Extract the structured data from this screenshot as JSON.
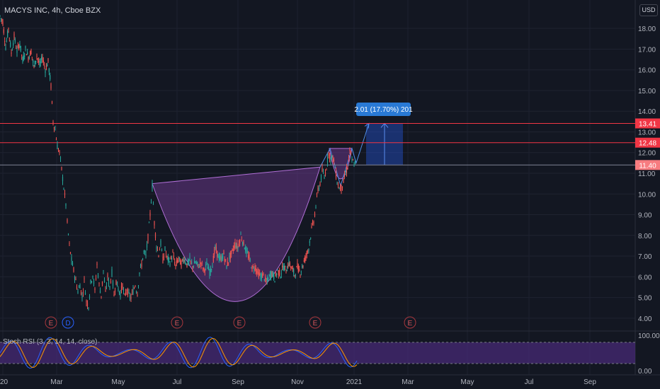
{
  "header": {
    "symbol_line": "MACYS INC, 4h, Cboe BZX",
    "currency": "USD"
  },
  "chart_data": {
    "type": "candlestick",
    "symbol": "MACYS INC",
    "interval": "4h",
    "exchange": "Cboe BZX",
    "ylim": [
      3.55,
      19.1
    ],
    "y_ticks": [
      "4.00",
      "5.00",
      "6.00",
      "7.00",
      "8.00",
      "9.00",
      "10.00",
      "11.00",
      "12.00",
      "13.00",
      "14.00",
      "15.00",
      "16.00",
      "17.00",
      "18.00"
    ],
    "x_ticks": [
      "20",
      "Mar",
      "May",
      "Jul",
      "Sep",
      "Nov",
      "2021",
      "Mar",
      "May",
      "Jul",
      "Sep"
    ],
    "price_path": [
      [
        0,
        18.6
      ],
      [
        4,
        18.3
      ],
      [
        8,
        17.1
      ],
      [
        12,
        18.0
      ],
      [
        16,
        16.8
      ],
      [
        20,
        17.6
      ],
      [
        24,
        16.9
      ],
      [
        28,
        17.3
      ],
      [
        32,
        16.4
      ],
      [
        36,
        17.0
      ],
      [
        40,
        16.6
      ],
      [
        44,
        16.9
      ],
      [
        48,
        16.1
      ],
      [
        52,
        16.7
      ],
      [
        56,
        16.2
      ],
      [
        60,
        16.6
      ],
      [
        64,
        16.0
      ],
      [
        68,
        16.4
      ],
      [
        72,
        15.2
      ],
      [
        75,
        13.5
      ],
      [
        78,
        13.1
      ],
      [
        81,
        12.3
      ],
      [
        84,
        12.0
      ],
      [
        87,
        11.2
      ],
      [
        90,
        10.3
      ],
      [
        93,
        9.5
      ],
      [
        95,
        8.6
      ],
      [
        98,
        7.5
      ],
      [
        101,
        6.8
      ],
      [
        104,
        6.3
      ],
      [
        107,
        5.8
      ],
      [
        110,
        5.3
      ],
      [
        113,
        5.6
      ],
      [
        116,
        5.0
      ],
      [
        119,
        5.8
      ],
      [
        122,
        4.8
      ],
      [
        125,
        4.6
      ],
      [
        128,
        5.7
      ],
      [
        131,
        6.1
      ],
      [
        134,
        5.3
      ],
      [
        137,
        6.6
      ],
      [
        140,
        5.6
      ],
      [
        143,
        5.1
      ],
      [
        146,
        6.3
      ],
      [
        149,
        5.2
      ],
      [
        152,
        6.0
      ],
      [
        155,
        5.5
      ],
      [
        158,
        6.2
      ],
      [
        161,
        5.1
      ],
      [
        164,
        5.8
      ],
      [
        167,
        5.4
      ],
      [
        170,
        5.2
      ],
      [
        173,
        5.6
      ],
      [
        176,
        5.0
      ],
      [
        179,
        5.4
      ],
      [
        182,
        5.1
      ],
      [
        185,
        5.0
      ],
      [
        188,
        5.3
      ],
      [
        191,
        5.6
      ],
      [
        194,
        5.2
      ],
      [
        197,
        6.2
      ],
      [
        200,
        6.6
      ],
      [
        203,
        7.2
      ],
      [
        206,
        7.0
      ],
      [
        209,
        7.9
      ],
      [
        212,
        9.0
      ],
      [
        215,
        10.4
      ],
      [
        218,
        8.6
      ],
      [
        221,
        7.5
      ],
      [
        224,
        7.1
      ],
      [
        227,
        7.6
      ],
      [
        230,
        6.8
      ],
      [
        233,
        7.3
      ],
      [
        236,
        6.9
      ],
      [
        240,
        6.7
      ],
      [
        244,
        7.1
      ],
      [
        248,
        6.5
      ],
      [
        252,
        6.9
      ],
      [
        256,
        6.6
      ],
      [
        260,
        6.9
      ],
      [
        264,
        6.6
      ],
      [
        268,
        6.8
      ],
      [
        272,
        6.5
      ],
      [
        276,
        6.7
      ],
      [
        280,
        6.5
      ],
      [
        284,
        6.7
      ],
      [
        288,
        6.3
      ],
      [
        292,
        6.6
      ],
      [
        296,
        6.2
      ],
      [
        300,
        6.6
      ],
      [
        304,
        7.4
      ],
      [
        308,
        7.0
      ],
      [
        312,
        6.8
      ],
      [
        316,
        7.1
      ],
      [
        320,
        6.5
      ],
      [
        324,
        6.9
      ],
      [
        328,
        7.2
      ],
      [
        332,
        7.6
      ],
      [
        336,
        7.4
      ],
      [
        340,
        8.0
      ],
      [
        344,
        7.6
      ],
      [
        348,
        7.2
      ],
      [
        352,
        6.9
      ],
      [
        356,
        6.4
      ],
      [
        360,
        6.5
      ],
      [
        364,
        6.2
      ],
      [
        368,
        6.0
      ],
      [
        372,
        6.1
      ],
      [
        376,
        5.7
      ],
      [
        380,
        6.0
      ],
      [
        384,
        6.2
      ],
      [
        388,
        5.9
      ],
      [
        392,
        6.3
      ],
      [
        396,
        6.1
      ],
      [
        400,
        6.5
      ],
      [
        404,
        6.3
      ],
      [
        408,
        6.7
      ],
      [
        412,
        6.4
      ],
      [
        416,
        6.1
      ],
      [
        420,
        6.5
      ],
      [
        424,
        6.2
      ],
      [
        428,
        6.6
      ],
      [
        432,
        7.0
      ],
      [
        436,
        7.4
      ],
      [
        440,
        8.3
      ],
      [
        443,
        8.7
      ],
      [
        446,
        9.4
      ],
      [
        449,
        10.2
      ],
      [
        452,
        10.5
      ],
      [
        455,
        11.1
      ],
      [
        458,
        10.8
      ],
      [
        461,
        11.3
      ],
      [
        464,
        12.0
      ],
      [
        467,
        11.7
      ],
      [
        470,
        11.8
      ],
      [
        473,
        11.3
      ],
      [
        476,
        10.6
      ],
      [
        479,
        10.3
      ],
      [
        482,
        10.3
      ],
      [
        485,
        10.6
      ],
      [
        488,
        11.0
      ],
      [
        491,
        11.3
      ],
      [
        494,
        12.1
      ],
      [
        497,
        11.6
      ],
      [
        500,
        11.5
      ],
      [
        503,
        11.3
      ]
    ],
    "horizontal_levels": [
      13.41,
      12.48,
      11.4
    ],
    "level_labels": [
      "13.41",
      "12.48",
      "11.40"
    ],
    "measure_label": "2.01 (17.70%) 201",
    "measure": {
      "from": 11.4,
      "to": 13.41,
      "change": 2.01,
      "percent": 17.7,
      "bars": 201
    },
    "cup_pattern": {
      "left_rim": 10.5,
      "bottom": 4.3,
      "right_rim": 11.3
    },
    "handle_pattern": {
      "top": 12.2,
      "bottom": 10.1
    },
    "projection": {
      "from": 11.4,
      "to": 13.41
    },
    "earnings_markers": [
      "E",
      "D",
      "E",
      "E",
      "E",
      "E"
    ],
    "indicator": {
      "label": "Stoch RSI (3, 3, 14, 14, close)",
      "y_ticks": [
        "100.00",
        "0.00"
      ],
      "band": [
        20,
        80
      ]
    }
  },
  "colors": {
    "background": "#131722",
    "up": "#26a69a",
    "down": "#ef5350",
    "level_line": "#f23645",
    "measure": "#2962ff",
    "pattern_fill": "#7b3f9e",
    "rsi_band": "#4a2b7a"
  }
}
